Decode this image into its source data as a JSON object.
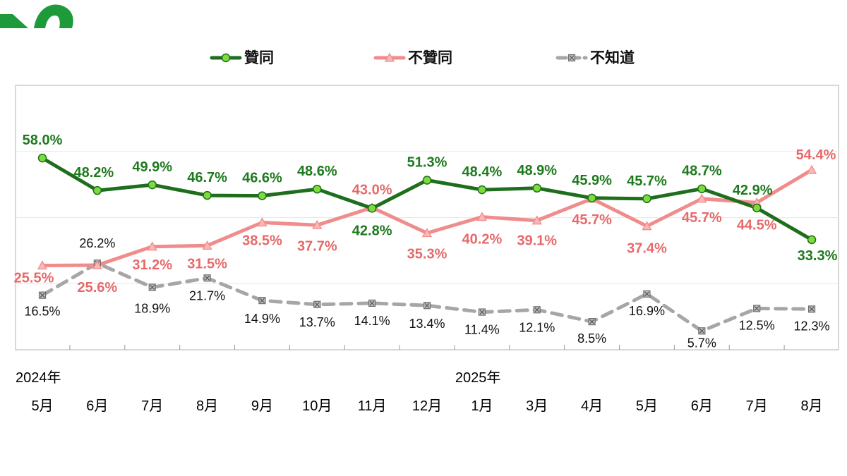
{
  "chart_data": {
    "type": "line",
    "title": "",
    "xlabel": "",
    "ylabel": "",
    "ylim": [
      0,
      80
    ],
    "grid": "horizontal",
    "legend_position": "top",
    "year_labels": [
      {
        "text": "2024年",
        "category_index": 0
      },
      {
        "text": "2025年",
        "category_index": 8
      }
    ],
    "categories": [
      "5月",
      "6月",
      "7月",
      "8月",
      "9月",
      "10月",
      "11月",
      "12月",
      "1月",
      "3月",
      "4月",
      "5月",
      "6月",
      "7月",
      "8月"
    ],
    "series": [
      {
        "name": "贊同",
        "color": "#1e6e1e",
        "marker": "circle",
        "marker_color": "#7ddc3c",
        "label_color": "#1e7a1e",
        "style": "solid",
        "values": [
          58.0,
          48.2,
          49.9,
          46.7,
          46.6,
          48.6,
          42.8,
          51.3,
          48.4,
          48.9,
          45.9,
          45.7,
          48.7,
          42.9,
          33.3
        ],
        "labels": [
          "58.0%",
          "48.2%",
          "49.9%",
          "46.7%",
          "46.6%",
          "48.6%",
          "42.8%",
          "51.3%",
          "48.4%",
          "48.9%",
          "45.9%",
          "45.7%",
          "48.7%",
          "42.9%",
          "33.3%"
        ]
      },
      {
        "name": "不贊同",
        "color": "#f08c8c",
        "marker": "triangle",
        "marker_color": "#f8b8b8",
        "label_color": "#e66a6a",
        "style": "solid",
        "values": [
          25.5,
          25.6,
          31.2,
          31.5,
          38.5,
          37.7,
          43.0,
          35.3,
          40.2,
          39.1,
          45.7,
          37.4,
          45.7,
          44.5,
          54.4
        ],
        "labels": [
          "25.5%",
          "25.6%",
          "31.2%",
          "31.5%",
          "38.5%",
          "37.7%",
          "43.0%",
          "35.3%",
          "40.2%",
          "39.1%",
          "45.7%",
          "37.4%",
          "45.7%",
          "44.5%",
          "54.4%"
        ]
      },
      {
        "name": "不知道",
        "color": "#a6a6a6",
        "marker": "square-x",
        "marker_color": "#bfbfbf",
        "label_color": "#111111",
        "style": "dashed",
        "values": [
          16.5,
          26.2,
          18.9,
          21.7,
          14.9,
          13.7,
          14.1,
          13.4,
          11.4,
          12.1,
          8.5,
          16.9,
          5.7,
          12.5,
          12.3
        ],
        "labels": [
          "16.5%",
          "26.2%",
          "18.9%",
          "21.7%",
          "14.9%",
          "13.7%",
          "14.1%",
          "13.4%",
          "11.4%",
          "12.1%",
          "8.5%",
          "16.9%",
          "5.7%",
          "12.5%",
          "12.3%"
        ]
      }
    ]
  }
}
